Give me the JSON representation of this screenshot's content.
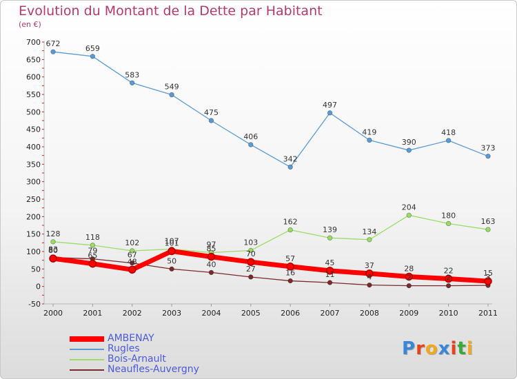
{
  "header": {
    "title": "Evolution du Montant de la Dette par Habitant",
    "unit": "(en €)"
  },
  "branding": {
    "logo_text": "Proxiti"
  },
  "chart_data": {
    "type": "line",
    "title": "Evolution du Montant de la Dette par Habitant",
    "ylabel": "(en €)",
    "xlabel": "",
    "x": [
      "2000",
      "2001",
      "2002",
      "2003",
      "2004",
      "2005",
      "2006",
      "2007",
      "2008",
      "2009",
      "2010",
      "2011"
    ],
    "yticks": [
      -50,
      0,
      50,
      100,
      150,
      200,
      250,
      300,
      350,
      400,
      450,
      500,
      550,
      600,
      650,
      700
    ],
    "ylim": [
      -50,
      700
    ],
    "grid": false,
    "legend_position": "bottom-left",
    "series": [
      {
        "name": "AMBENAY",
        "color": "#ff0000",
        "values": [
          80,
          65,
          48,
          101,
          85,
          70,
          57,
          45,
          37,
          28,
          22,
          15
        ],
        "labels": [
          "80",
          "65",
          "48",
          "101",
          "85",
          "70",
          "57",
          "45",
          "37",
          "28",
          "22",
          "15"
        ]
      },
      {
        "name": "Rugles",
        "color": "#5a9bd5",
        "values": [
          672,
          659,
          583,
          549,
          475,
          406,
          342,
          497,
          419,
          390,
          418,
          373
        ],
        "labels": [
          "672",
          "659",
          "583",
          "549",
          "475",
          "406",
          "342",
          "497",
          "419",
          "390",
          "418",
          "373"
        ]
      },
      {
        "name": "Bois-Arnault",
        "color": "#99dd66",
        "values": [
          128,
          118,
          102,
          107,
          97,
          103,
          162,
          139,
          134,
          204,
          180,
          163
        ],
        "labels": [
          "128",
          "118",
          "102",
          "107",
          "97",
          "103",
          "162",
          "139",
          "134",
          "204",
          "180",
          "163"
        ]
      },
      {
        "name": "Neaufles-Auvergny",
        "color": "#7a2a2a",
        "values": [
          83,
          79,
          67,
          50,
          40,
          27,
          16,
          11,
          4,
          2,
          2,
          3
        ],
        "labels": [
          "83",
          "79",
          "67",
          "50",
          "40",
          "27",
          "16",
          "11",
          "4",
          "2",
          "2",
          "3"
        ]
      }
    ]
  }
}
